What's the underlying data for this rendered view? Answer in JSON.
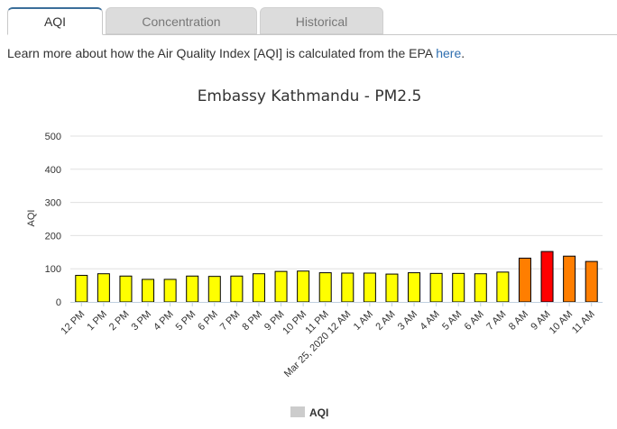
{
  "tabs": [
    {
      "label": "AQI",
      "active": true
    },
    {
      "label": "Concentration",
      "active": false
    },
    {
      "label": "Historical",
      "active": false
    }
  ],
  "info": {
    "text": "Learn more about how the Air Quality Index [AQI] is calculated from the EPA ",
    "link_label": "here",
    "suffix": "."
  },
  "chart_data": {
    "type": "bar",
    "title": "Embassy Kathmandu - PM2.5",
    "ylabel": "AQI",
    "xlabel": "",
    "ylim": [
      0,
      500
    ],
    "yticks": [
      0,
      100,
      200,
      300,
      400,
      500
    ],
    "grid": true,
    "legend": "bottom-center",
    "categories": [
      "12 PM",
      "1 PM",
      "2 PM",
      "3 PM",
      "4 PM",
      "5 PM",
      "6 PM",
      "7 PM",
      "8 PM",
      "9 PM",
      "10 PM",
      "11 PM",
      "Mar 25, 2020 12 AM",
      "1 AM",
      "2 AM",
      "3 AM",
      "4 AM",
      "5 AM",
      "6 AM",
      "7 AM",
      "8 AM",
      "9 AM",
      "10 AM",
      "11 AM"
    ],
    "series": [
      {
        "name": "AQI",
        "legend_color": "#cccccc",
        "values": [
          80,
          85,
          78,
          68,
          68,
          78,
          77,
          78,
          85,
          92,
          93,
          88,
          87,
          87,
          84,
          88,
          86,
          86,
          85,
          90,
          132,
          152,
          138,
          122
        ],
        "colors": [
          "#ffff00",
          "#ffff00",
          "#ffff00",
          "#ffff00",
          "#ffff00",
          "#ffff00",
          "#ffff00",
          "#ffff00",
          "#ffff00",
          "#ffff00",
          "#ffff00",
          "#ffff00",
          "#ffff00",
          "#ffff00",
          "#ffff00",
          "#ffff00",
          "#ffff00",
          "#ffff00",
          "#ffff00",
          "#ffff00",
          "#ff7e00",
          "#ff0000",
          "#ff7e00",
          "#ff7e00"
        ]
      }
    ]
  }
}
